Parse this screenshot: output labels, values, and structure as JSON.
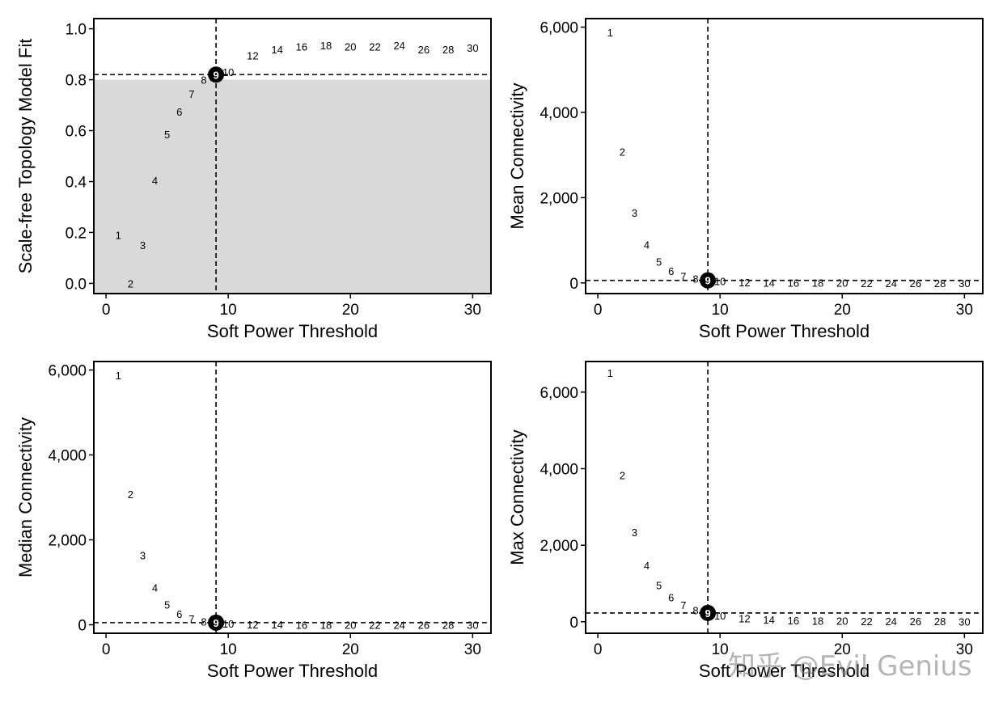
{
  "watermark": "知乎 @Evil Genius",
  "chart_data": [
    {
      "type": "scatter",
      "xlabel": "Soft Power Threshold",
      "ylabel": "Scale-free Topology Model Fit",
      "xlim": [
        -1,
        31.5
      ],
      "ylim": [
        -0.04,
        1.04
      ],
      "xticks": [
        0,
        10,
        20,
        30
      ],
      "yticks": [
        0.0,
        0.2,
        0.4,
        0.6,
        0.8,
        1.0
      ],
      "ytick_labels": [
        "0.0",
        "0.2",
        "0.4",
        "0.6",
        "0.8",
        "1.0"
      ],
      "shaded_below": 0.8,
      "hline": 0.82,
      "vline": 9,
      "highlight": 9,
      "points": [
        {
          "x": 1,
          "y": 0.19,
          "label": "1"
        },
        {
          "x": 2,
          "y": 0.0,
          "label": "2"
        },
        {
          "x": 3,
          "y": 0.15,
          "label": "3"
        },
        {
          "x": 4,
          "y": 0.405,
          "label": "4"
        },
        {
          "x": 5,
          "y": 0.585,
          "label": "5"
        },
        {
          "x": 6,
          "y": 0.675,
          "label": "6"
        },
        {
          "x": 7,
          "y": 0.745,
          "label": "7"
        },
        {
          "x": 8,
          "y": 0.8,
          "label": "8"
        },
        {
          "x": 9,
          "y": 0.82,
          "label": "9"
        },
        {
          "x": 10,
          "y": 0.83,
          "label": "10"
        },
        {
          "x": 12,
          "y": 0.895,
          "label": "12"
        },
        {
          "x": 14,
          "y": 0.92,
          "label": "14"
        },
        {
          "x": 16,
          "y": 0.93,
          "label": "16"
        },
        {
          "x": 18,
          "y": 0.935,
          "label": "18"
        },
        {
          "x": 20,
          "y": 0.93,
          "label": "20"
        },
        {
          "x": 22,
          "y": 0.93,
          "label": "22"
        },
        {
          "x": 24,
          "y": 0.935,
          "label": "24"
        },
        {
          "x": 26,
          "y": 0.92,
          "label": "26"
        },
        {
          "x": 28,
          "y": 0.92,
          "label": "28"
        },
        {
          "x": 30,
          "y": 0.925,
          "label": "30"
        }
      ]
    },
    {
      "type": "scatter",
      "xlabel": "Soft Power Threshold",
      "ylabel": "Mean Connectivity",
      "xlim": [
        -1,
        31.5
      ],
      "ylim": [
        -250,
        6200
      ],
      "xticks": [
        0,
        10,
        20,
        30
      ],
      "yticks": [
        0,
        2000,
        4000,
        6000
      ],
      "ytick_labels": [
        "0",
        "2,000",
        "4,000",
        "6,000"
      ],
      "hline": 60,
      "vline": 9,
      "highlight": 9,
      "points": [
        {
          "x": 1,
          "y": 5880,
          "label": "1"
        },
        {
          "x": 2,
          "y": 3080,
          "label": "2"
        },
        {
          "x": 3,
          "y": 1650,
          "label": "3"
        },
        {
          "x": 4,
          "y": 900,
          "label": "4"
        },
        {
          "x": 5,
          "y": 500,
          "label": "5"
        },
        {
          "x": 6,
          "y": 280,
          "label": "6"
        },
        {
          "x": 7,
          "y": 160,
          "label": "7"
        },
        {
          "x": 8,
          "y": 100,
          "label": "8"
        },
        {
          "x": 9,
          "y": 60,
          "label": "9"
        },
        {
          "x": 10,
          "y": 40,
          "label": "10"
        },
        {
          "x": 12,
          "y": 15,
          "label": "12"
        },
        {
          "x": 14,
          "y": 8,
          "label": "14"
        },
        {
          "x": 16,
          "y": 5,
          "label": "16"
        },
        {
          "x": 18,
          "y": 3,
          "label": "18"
        },
        {
          "x": 20,
          "y": 2,
          "label": "20"
        },
        {
          "x": 22,
          "y": 1,
          "label": "22"
        },
        {
          "x": 24,
          "y": 1,
          "label": "24"
        },
        {
          "x": 26,
          "y": 1,
          "label": "26"
        },
        {
          "x": 28,
          "y": 0,
          "label": "28"
        },
        {
          "x": 30,
          "y": 0,
          "label": "30"
        }
      ]
    },
    {
      "type": "scatter",
      "xlabel": "Soft Power Threshold",
      "ylabel": "Median Connectivity",
      "xlim": [
        -1,
        31.5
      ],
      "ylim": [
        -200,
        6200
      ],
      "xticks": [
        0,
        10,
        20,
        30
      ],
      "yticks": [
        0,
        2000,
        4000,
        6000
      ],
      "ytick_labels": [
        "0",
        "2,000",
        "4,000",
        "6,000"
      ],
      "hline": 50,
      "vline": 9,
      "highlight": 9,
      "points": [
        {
          "x": 1,
          "y": 5880,
          "label": "1"
        },
        {
          "x": 2,
          "y": 3080,
          "label": "2"
        },
        {
          "x": 3,
          "y": 1640,
          "label": "3"
        },
        {
          "x": 4,
          "y": 880,
          "label": "4"
        },
        {
          "x": 5,
          "y": 480,
          "label": "5"
        },
        {
          "x": 6,
          "y": 260,
          "label": "6"
        },
        {
          "x": 7,
          "y": 140,
          "label": "7"
        },
        {
          "x": 8,
          "y": 80,
          "label": "8"
        },
        {
          "x": 9,
          "y": 50,
          "label": "9"
        },
        {
          "x": 10,
          "y": 30,
          "label": "10"
        },
        {
          "x": 12,
          "y": 10,
          "label": "12"
        },
        {
          "x": 14,
          "y": 5,
          "label": "14"
        },
        {
          "x": 16,
          "y": 3,
          "label": "16"
        },
        {
          "x": 18,
          "y": 2,
          "label": "18"
        },
        {
          "x": 20,
          "y": 1,
          "label": "20"
        },
        {
          "x": 22,
          "y": 1,
          "label": "22"
        },
        {
          "x": 24,
          "y": 0,
          "label": "24"
        },
        {
          "x": 26,
          "y": 0,
          "label": "26"
        },
        {
          "x": 28,
          "y": 0,
          "label": "28"
        },
        {
          "x": 30,
          "y": 0,
          "label": "30"
        }
      ]
    },
    {
      "type": "scatter",
      "xlabel": "Soft Power Threshold",
      "ylabel": "Max Connectivity",
      "xlim": [
        -1,
        31.5
      ],
      "ylim": [
        -300,
        6800
      ],
      "xticks": [
        0,
        10,
        20,
        30
      ],
      "yticks": [
        0,
        2000,
        4000,
        6000
      ],
      "ytick_labels": [
        "0",
        "2,000",
        "4,000",
        "6,000"
      ],
      "hline": 230,
      "vline": 9,
      "highlight": 9,
      "points": [
        {
          "x": 1,
          "y": 6500,
          "label": "1"
        },
        {
          "x": 2,
          "y": 3830,
          "label": "2"
        },
        {
          "x": 3,
          "y": 2340,
          "label": "3"
        },
        {
          "x": 4,
          "y": 1480,
          "label": "4"
        },
        {
          "x": 5,
          "y": 960,
          "label": "5"
        },
        {
          "x": 6,
          "y": 640,
          "label": "6"
        },
        {
          "x": 7,
          "y": 440,
          "label": "7"
        },
        {
          "x": 8,
          "y": 300,
          "label": "8"
        },
        {
          "x": 9,
          "y": 230,
          "label": "9"
        },
        {
          "x": 10,
          "y": 170,
          "label": "10"
        },
        {
          "x": 12,
          "y": 90,
          "label": "12"
        },
        {
          "x": 14,
          "y": 60,
          "label": "14"
        },
        {
          "x": 16,
          "y": 40,
          "label": "16"
        },
        {
          "x": 18,
          "y": 30,
          "label": "18"
        },
        {
          "x": 20,
          "y": 25,
          "label": "20"
        },
        {
          "x": 22,
          "y": 20,
          "label": "22"
        },
        {
          "x": 24,
          "y": 20,
          "label": "24"
        },
        {
          "x": 26,
          "y": 15,
          "label": "26"
        },
        {
          "x": 28,
          "y": 15,
          "label": "28"
        },
        {
          "x": 30,
          "y": 10,
          "label": "30"
        }
      ]
    }
  ]
}
